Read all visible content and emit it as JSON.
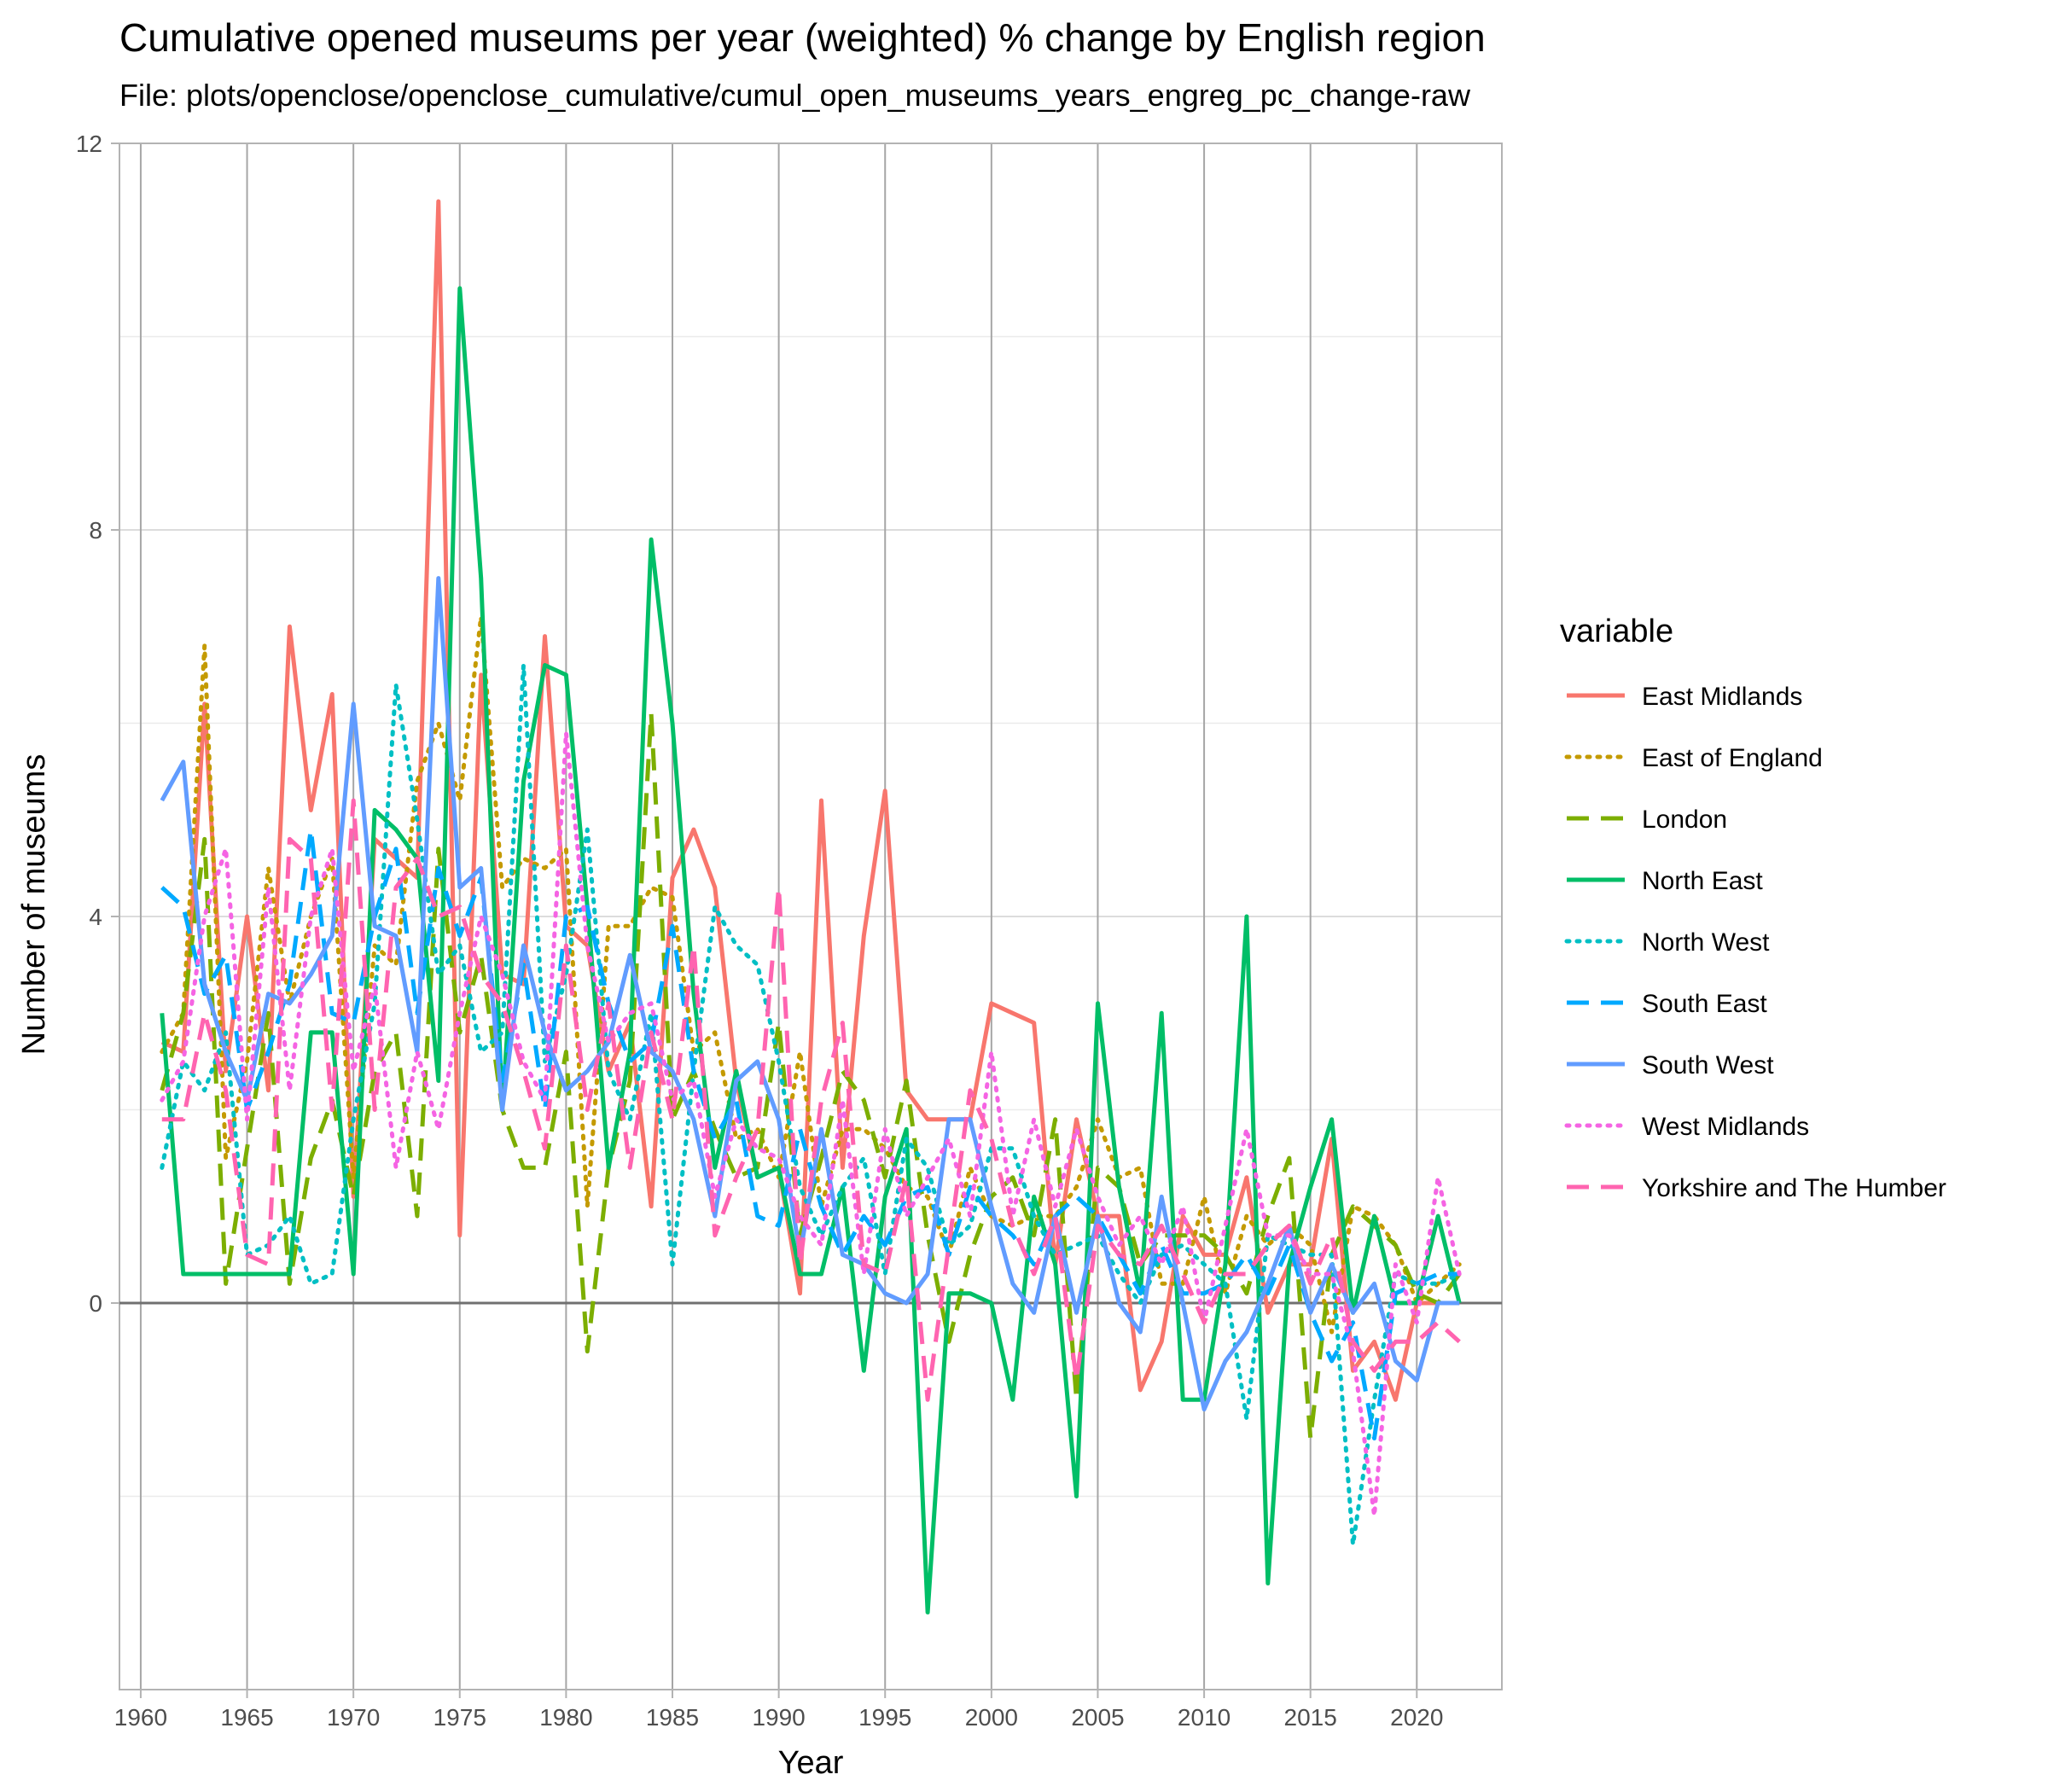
{
  "chart_data": {
    "type": "line",
    "title": "Cumulative opened museums per year (weighted) % change by English region",
    "subtitle": "File: plots/openclose/openclose_cumulative/cumul_open_museums_years_engreg_pc_change-raw",
    "xlabel": "Year",
    "ylabel": "Number of museums",
    "xlim": [
      1959,
      2024
    ],
    "ylim": [
      -4,
      12
    ],
    "x_ticks": [
      1960,
      1965,
      1970,
      1975,
      1980,
      1985,
      1990,
      1995,
      2000,
      2005,
      2010,
      2015,
      2020
    ],
    "y_ticks": [
      0,
      4,
      8,
      12
    ],
    "grid": true,
    "legend": {
      "title": "variable",
      "position": "right"
    },
    "x": [
      1961,
      1962,
      1963,
      1964,
      1965,
      1966,
      1967,
      1968,
      1969,
      1970,
      1971,
      1972,
      1973,
      1974,
      1975,
      1976,
      1977,
      1978,
      1979,
      1980,
      1981,
      1982,
      1983,
      1984,
      1985,
      1986,
      1987,
      1988,
      1989,
      1990,
      1991,
      1992,
      1993,
      1994,
      1995,
      1996,
      1997,
      1998,
      1999,
      2000,
      2001,
      2002,
      2003,
      2004,
      2005,
      2006,
      2007,
      2008,
      2009,
      2010,
      2011,
      2012,
      2013,
      2014,
      2015,
      2016,
      2017,
      2018,
      2019,
      2020,
      2021,
      2022
    ],
    "series": [
      {
        "name": "East Midlands",
        "color": "#F8766D",
        "dash": "solid",
        "values": [
          2.7,
          2.6,
          6.2,
          2.4,
          4.0,
          2.2,
          7.0,
          5.1,
          6.3,
          1.1,
          4.8,
          4.6,
          4.4,
          11.4,
          0.7,
          6.5,
          3.4,
          3.3,
          6.9,
          3.9,
          3.7,
          2.4,
          2.9,
          1.0,
          4.4,
          4.9,
          4.3,
          2.3,
          1.3,
          1.4,
          0.1,
          5.2,
          1.4,
          3.8,
          5.3,
          2.2,
          1.9,
          1.9,
          1.9,
          3.1,
          3.0,
          2.9,
          0.4,
          1.9,
          0.9,
          0.9,
          -0.9,
          -0.4,
          0.9,
          0.5,
          0.5,
          1.3,
          -0.1,
          0.4,
          0.4,
          1.7,
          -0.7,
          -0.4,
          -1.0,
          0.0,
          0.0,
          0.0
        ]
      },
      {
        "name": "East of England",
        "color": "#C49A00",
        "dash": "dotted",
        "values": [
          2.6,
          3.0,
          6.8,
          1.5,
          2.5,
          4.5,
          3.1,
          4.0,
          4.6,
          1.3,
          3.7,
          3.5,
          5.4,
          6.0,
          5.2,
          7.1,
          4.3,
          4.6,
          4.5,
          4.7,
          1.0,
          3.9,
          3.9,
          4.3,
          4.2,
          2.6,
          2.8,
          1.7,
          1.8,
          1.3,
          2.6,
          1.0,
          1.8,
          1.8,
          1.6,
          1.2,
          1.1,
          0.5,
          1.4,
          0.9,
          0.8,
          0.9,
          0.9,
          1.2,
          1.9,
          1.3,
          1.4,
          0.2,
          0.2,
          1.1,
          0.1,
          0.9,
          0.6,
          0.8,
          0.6,
          -0.3,
          1.0,
          0.9,
          0.6,
          0.0,
          0.2,
          0.4
        ]
      },
      {
        "name": "London",
        "color": "#7CAE00",
        "dash": "longdash",
        "values": [
          2.2,
          3.0,
          4.8,
          0.2,
          1.6,
          3.0,
          0.2,
          1.5,
          2.1,
          1.1,
          2.4,
          2.8,
          0.9,
          4.7,
          2.8,
          3.6,
          2.0,
          1.4,
          1.4,
          2.6,
          -0.5,
          1.4,
          2.3,
          6.1,
          1.9,
          2.4,
          1.8,
          1.3,
          1.4,
          2.9,
          0.7,
          1.5,
          2.4,
          2.1,
          1.3,
          2.3,
          0.7,
          -0.4,
          0.5,
          1.1,
          1.3,
          0.7,
          1.9,
          -1.0,
          1.4,
          1.2,
          0.4,
          0.7,
          0.7,
          0.7,
          0.5,
          0.1,
          0.9,
          1.5,
          -1.4,
          0.5,
          1.0,
          0.8,
          0.6,
          0.1,
          0.0,
          0.3
        ]
      },
      {
        "name": "North East",
        "color": "#00BE67",
        "dash": "solid",
        "values": [
          3.0,
          0.3,
          0.3,
          0.3,
          0.3,
          0.3,
          0.3,
          2.8,
          2.8,
          0.3,
          5.1,
          4.9,
          4.6,
          2.3,
          10.5,
          7.5,
          2.0,
          5.4,
          6.6,
          6.5,
          4.1,
          1.4,
          2.6,
          7.9,
          6.0,
          3.2,
          1.4,
          2.4,
          1.3,
          1.4,
          0.3,
          0.3,
          1.2,
          -0.7,
          1.1,
          1.8,
          -3.2,
          0.1,
          0.1,
          0.0,
          -1.0,
          1.1,
          0.4,
          -2.0,
          3.1,
          1.2,
          0.1,
          3.0,
          -1.0,
          -1.0,
          0.4,
          4.0,
          -2.9,
          0.4,
          1.2,
          1.9,
          -0.1,
          0.9,
          0.0,
          0.0,
          0.9,
          0.0
        ]
      },
      {
        "name": "North West",
        "color": "#00BFC4",
        "dash": "dotted",
        "values": [
          1.4,
          2.5,
          2.2,
          2.8,
          0.5,
          0.6,
          0.9,
          0.2,
          0.3,
          1.9,
          3.1,
          6.4,
          5.0,
          3.4,
          3.7,
          2.6,
          2.8,
          6.6,
          2.5,
          3.4,
          4.9,
          2.4,
          1.9,
          3.0,
          0.4,
          2.4,
          4.1,
          3.7,
          3.5,
          2.5,
          1.2,
          0.7,
          1.2,
          1.5,
          0.3,
          1.7,
          1.4,
          0.6,
          0.8,
          1.6,
          1.6,
          0.9,
          0.5,
          0.6,
          0.7,
          0.3,
          0.0,
          0.5,
          0.6,
          0.4,
          0.2,
          -1.2,
          0.7,
          0.6,
          0.5,
          0.5,
          -2.5,
          -1.0,
          0.3,
          0.2,
          0.2,
          0.3
        ]
      },
      {
        "name": "South East",
        "color": "#00A9FF",
        "dash": "longdash",
        "values": [
          4.3,
          4.1,
          3.2,
          3.6,
          2.0,
          2.6,
          3.3,
          4.9,
          3.0,
          2.9,
          4.0,
          4.7,
          3.0,
          4.5,
          3.8,
          4.4,
          2.3,
          3.5,
          2.0,
          4.0,
          4.1,
          3.1,
          2.5,
          2.7,
          3.9,
          2.4,
          1.7,
          2.1,
          0.9,
          0.8,
          1.8,
          1.0,
          0.5,
          0.9,
          0.6,
          1.1,
          1.2,
          0.5,
          1.2,
          0.9,
          0.7,
          0.4,
          0.9,
          1.1,
          0.9,
          0.5,
          0.1,
          0.6,
          0.1,
          0.1,
          0.2,
          0.5,
          0.1,
          0.6,
          -0.1,
          -0.6,
          -0.2,
          -1.4,
          0.1,
          0.2,
          0.3,
          0.3
        ]
      },
      {
        "name": "South West",
        "color": "#619CFF",
        "dash": "solid",
        "values": [
          5.2,
          5.6,
          3.3,
          2.6,
          2.1,
          3.2,
          3.1,
          3.4,
          3.8,
          6.2,
          3.9,
          3.8,
          2.6,
          7.5,
          4.3,
          4.5,
          2.0,
          3.7,
          2.8,
          2.2,
          2.4,
          2.7,
          3.6,
          2.6,
          2.4,
          1.9,
          0.9,
          2.3,
          2.5,
          1.9,
          0.5,
          1.8,
          0.5,
          0.4,
          0.1,
          0.0,
          0.3,
          1.9,
          1.9,
          1.0,
          0.2,
          -0.1,
          0.9,
          -0.1,
          0.9,
          0.0,
          -0.3,
          1.1,
          0.0,
          -1.1,
          -0.6,
          -0.3,
          0.2,
          0.8,
          -0.1,
          0.4,
          -0.1,
          0.2,
          -0.6,
          -0.8,
          0.0,
          0.0
        ]
      },
      {
        "name": "West Midlands",
        "color": "#F564E3",
        "dash": "dotted",
        "values": [
          2.1,
          2.5,
          4.0,
          4.7,
          1.9,
          4.3,
          2.2,
          4.0,
          4.7,
          2.4,
          3.3,
          1.4,
          2.6,
          1.8,
          3.0,
          4.0,
          3.4,
          2.5,
          2.1,
          5.9,
          3.7,
          2.7,
          3.0,
          3.1,
          2.1,
          2.3,
          1.1,
          1.9,
          1.6,
          1.5,
          0.9,
          0.6,
          2.1,
          0.3,
          1.8,
          0.9,
          1.3,
          1.7,
          0.9,
          2.6,
          0.9,
          1.9,
          1.0,
          1.8,
          1.1,
          0.6,
          0.9,
          0.4,
          1.0,
          -0.2,
          0.8,
          1.8,
          0.7,
          0.7,
          0.3,
          0.3,
          -0.5,
          -2.2,
          0.4,
          -0.2,
          1.3,
          0.3
        ]
      },
      {
        "name": "Yorkshire and The Humber",
        "color": "#FF64B0",
        "dash": "longdash",
        "values": [
          1.9,
          1.9,
          3.0,
          2.2,
          0.5,
          0.4,
          4.8,
          4.6,
          2.0,
          5.2,
          2.0,
          4.3,
          4.6,
          4.0,
          4.1,
          3.4,
          3.1,
          2.4,
          1.6,
          3.7,
          2.0,
          3.1,
          1.4,
          2.8,
          1.9,
          3.7,
          0.7,
          1.3,
          1.8,
          4.3,
          0.4,
          2.1,
          2.9,
          0.4,
          0.3,
          1.3,
          -1.0,
          0.6,
          2.2,
          1.7,
          0.8,
          0.3,
          0.9,
          -0.8,
          0.8,
          0.5,
          0.4,
          0.8,
          0.3,
          -0.2,
          0.3,
          0.3,
          0.6,
          0.8,
          0.2,
          0.7,
          -0.4,
          -0.7,
          -0.4,
          -0.4,
          -0.2,
          -0.4
        ]
      }
    ]
  }
}
